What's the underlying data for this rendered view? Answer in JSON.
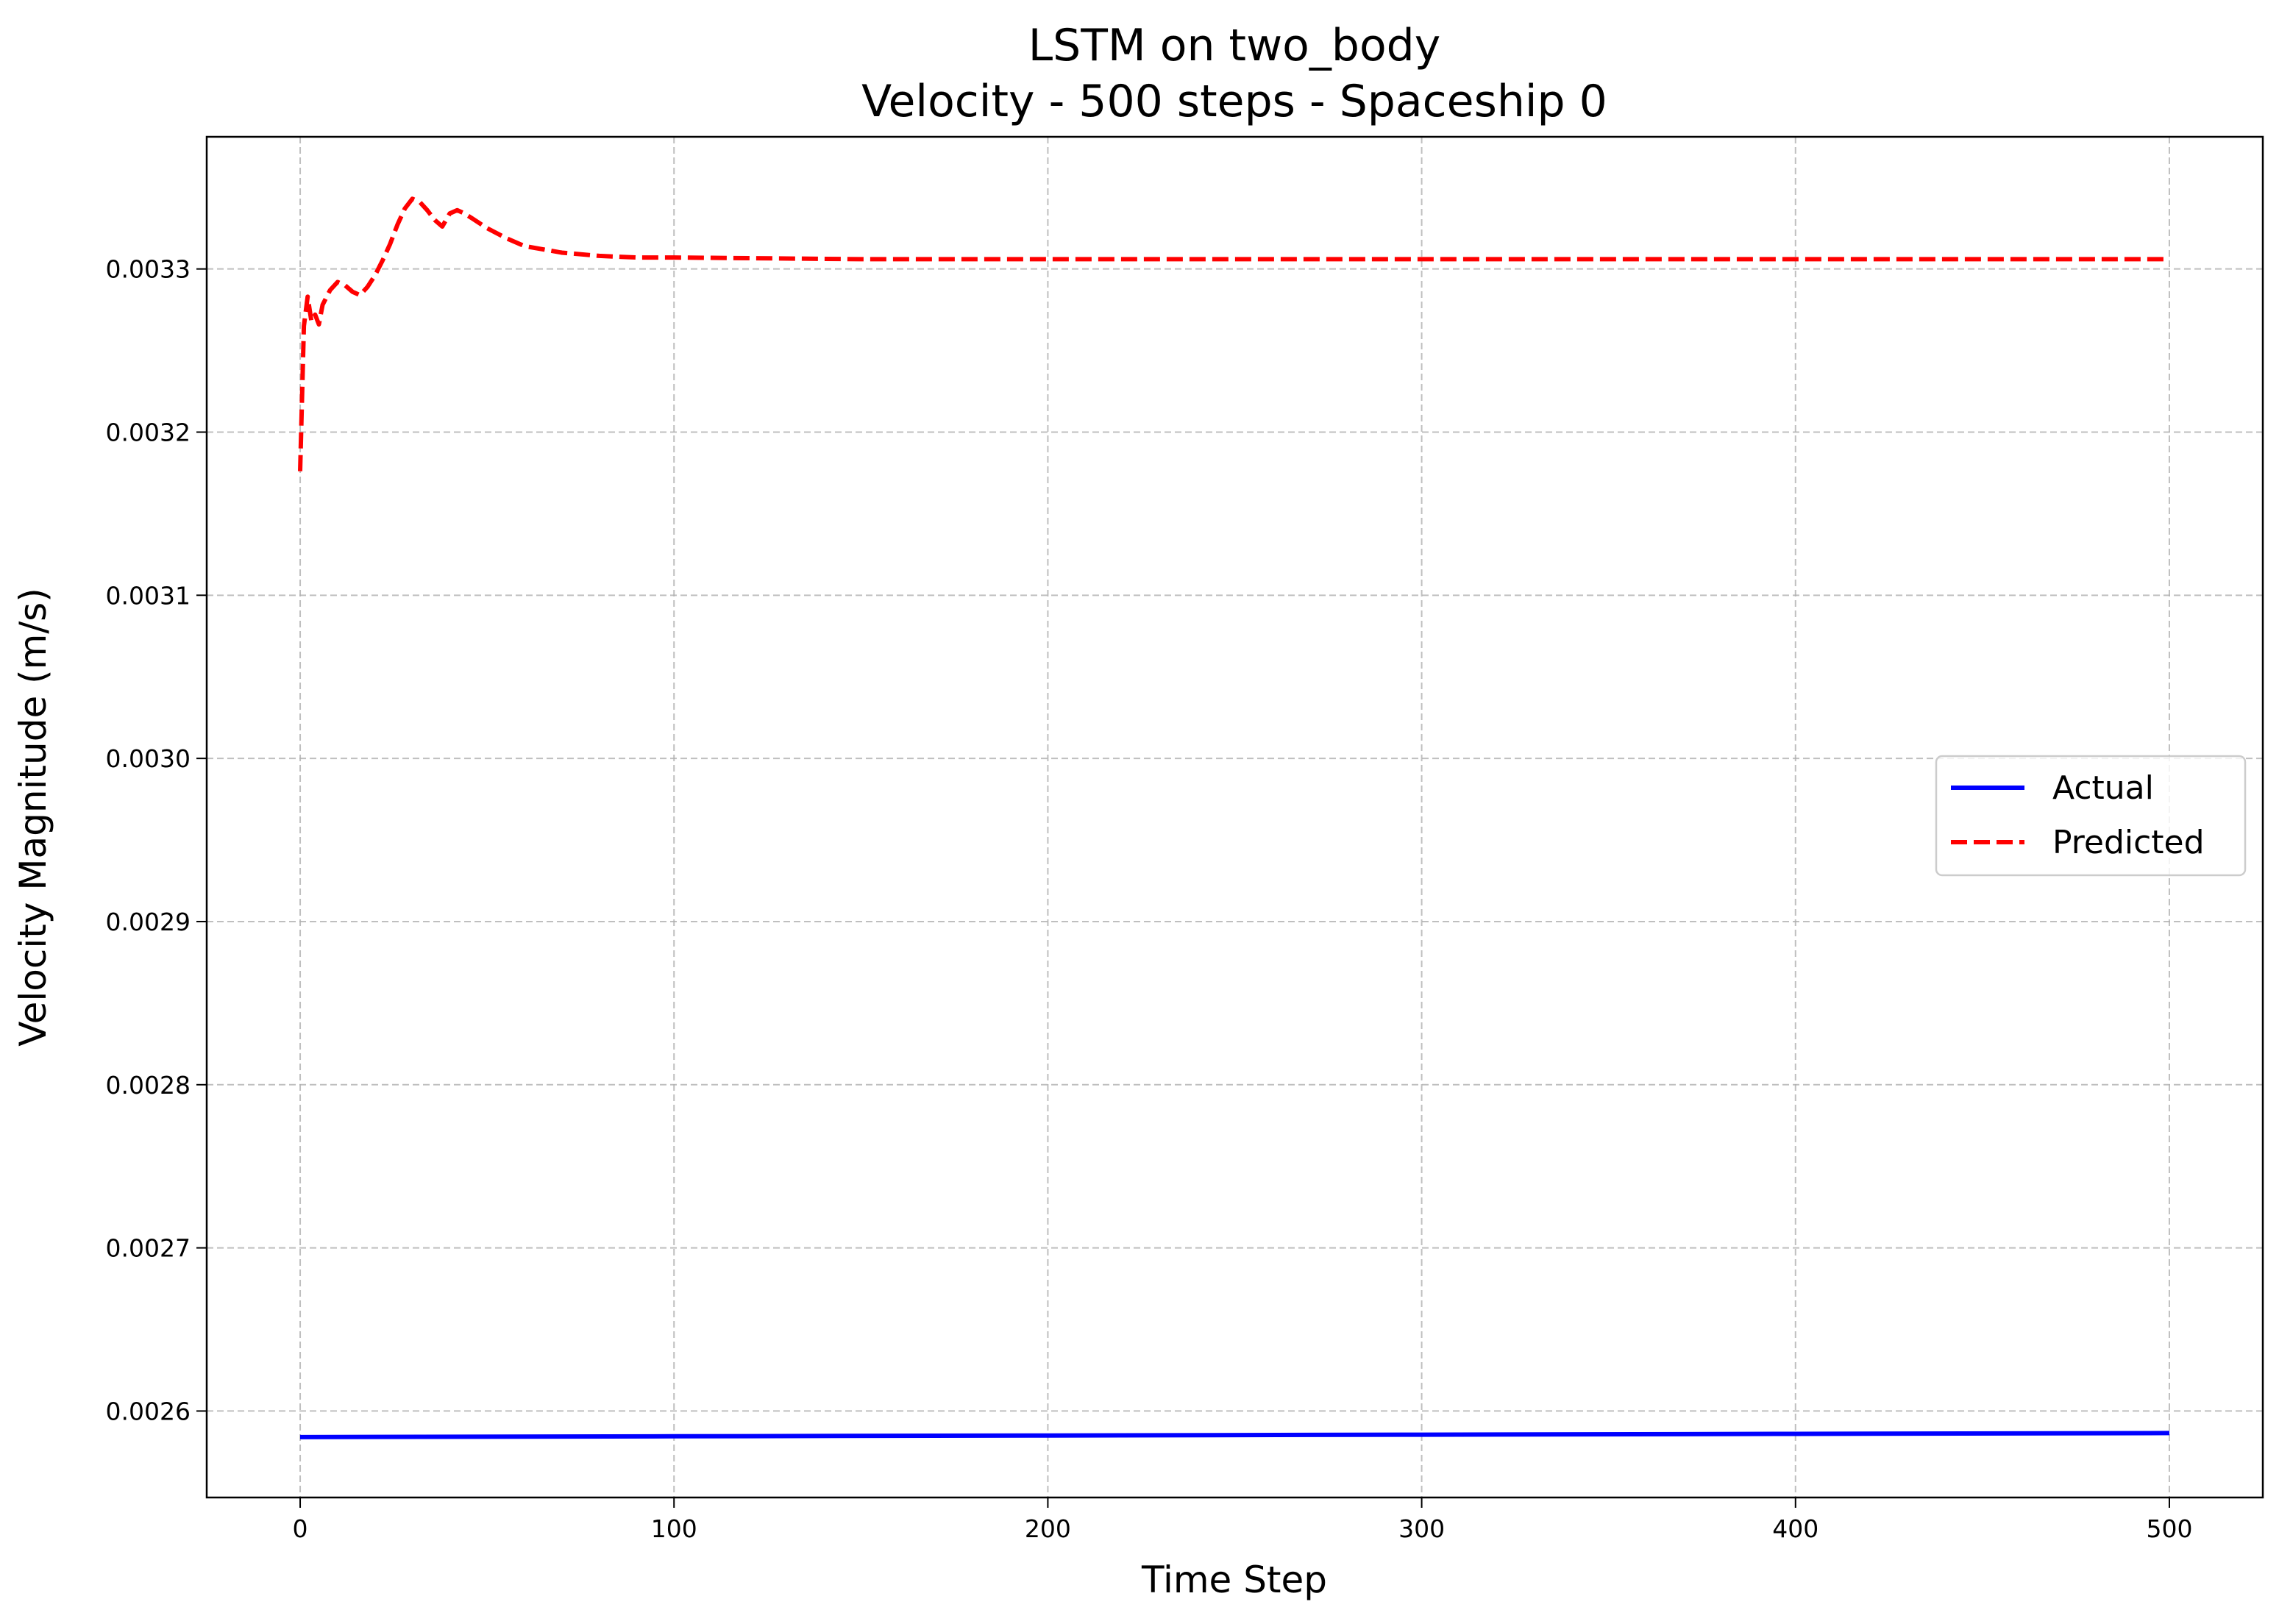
{
  "chart_data": {
    "type": "line",
    "title": "LSTM on two_body",
    "subtitle": "Velocity - 500 steps - Spaceship 0",
    "xlabel": "Time Step",
    "ylabel": "Velocity Magnitude (m/s)",
    "xlim": [
      -25,
      525
    ],
    "ylim": [
      0.002547,
      0.003381
    ],
    "xticks": [
      0,
      100,
      200,
      300,
      400,
      500
    ],
    "xtick_labels": [
      "0",
      "100",
      "200",
      "300",
      "400",
      "500"
    ],
    "yticks": [
      0.0026,
      0.0027,
      0.0028,
      0.0029,
      0.003,
      0.0031,
      0.0032,
      0.0033
    ],
    "ytick_labels": [
      "0.0026",
      "0.0027",
      "0.0028",
      "0.0029",
      "0.0030",
      "0.0031",
      "0.0032",
      "0.0033"
    ],
    "grid": true,
    "legend_position": "center-right",
    "series": [
      {
        "name": "Actual",
        "color": "#0000ff",
        "style": "solid",
        "x": [
          0,
          100,
          200,
          300,
          400,
          500
        ],
        "y": [
          0.002584,
          0.0025845,
          0.002585,
          0.0025855,
          0.002586,
          0.0025865
        ]
      },
      {
        "name": "Predicted",
        "color": "#ff0000",
        "style": "dashed",
        "x": [
          0,
          1,
          2,
          3,
          4,
          5,
          6,
          8,
          10,
          12,
          14,
          16,
          18,
          20,
          22,
          24,
          26,
          28,
          30,
          32,
          34,
          36,
          38,
          40,
          42,
          44,
          46,
          50,
          55,
          60,
          70,
          80,
          90,
          100,
          150,
          200,
          300,
          400,
          500
        ],
        "y": [
          0.003176,
          0.003265,
          0.003283,
          0.003268,
          0.003272,
          0.003266,
          0.003278,
          0.003287,
          0.003292,
          0.00329,
          0.003286,
          0.003284,
          0.003289,
          0.003296,
          0.003305,
          0.003315,
          0.003327,
          0.003337,
          0.003343,
          0.003341,
          0.003336,
          0.00333,
          0.003326,
          0.003334,
          0.003336,
          0.003334,
          0.003331,
          0.003325,
          0.003319,
          0.003314,
          0.00331,
          0.003308,
          0.003307,
          0.003307,
          0.003306,
          0.003306,
          0.003306,
          0.003306,
          0.003306
        ]
      }
    ]
  }
}
